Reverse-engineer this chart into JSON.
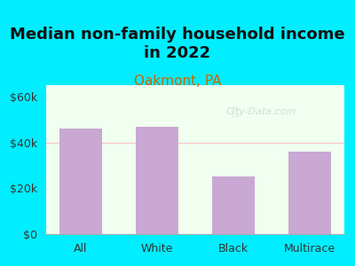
{
  "title": "Median non-family household income\nin 2022",
  "subtitle": "Oakmont, PA",
  "categories": [
    "All",
    "White",
    "Black",
    "Multirace"
  ],
  "values": [
    46000,
    47000,
    25000,
    36000
  ],
  "bar_color": "#c9a8d4",
  "title_fontsize": 13,
  "subtitle_fontsize": 11,
  "subtitle_color": "#cc6600",
  "title_color": "#111111",
  "bg_outer": "#00eeff",
  "bg_inner_top": "#f0fff0",
  "bg_inner_bottom": "#e8f5e8",
  "ylim": [
    0,
    65000
  ],
  "yticks": [
    0,
    20000,
    40000,
    60000
  ],
  "ytick_labels": [
    "$0",
    "$20k",
    "$40k",
    "$60k"
  ],
  "watermark": "City-Data.com",
  "horizontal_line_y": 40000,
  "horizontal_line_color": "#ffaaaa"
}
